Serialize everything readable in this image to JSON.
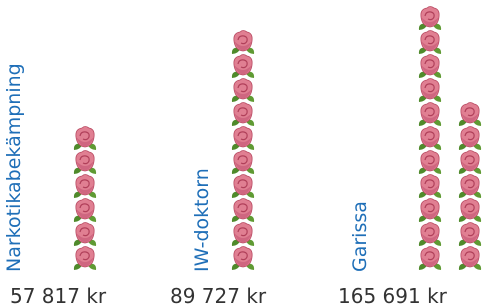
{
  "chart_data": {
    "type": "pictograph",
    "categories": [
      "Narkotikabekämpning",
      "IW-doktorn",
      "Garissa"
    ],
    "values": [
      57817,
      89727,
      165691
    ],
    "value_labels": [
      "57 817 kr",
      "89 727 kr",
      "165 691 kr"
    ],
    "color": "#e07f92"
  }
}
